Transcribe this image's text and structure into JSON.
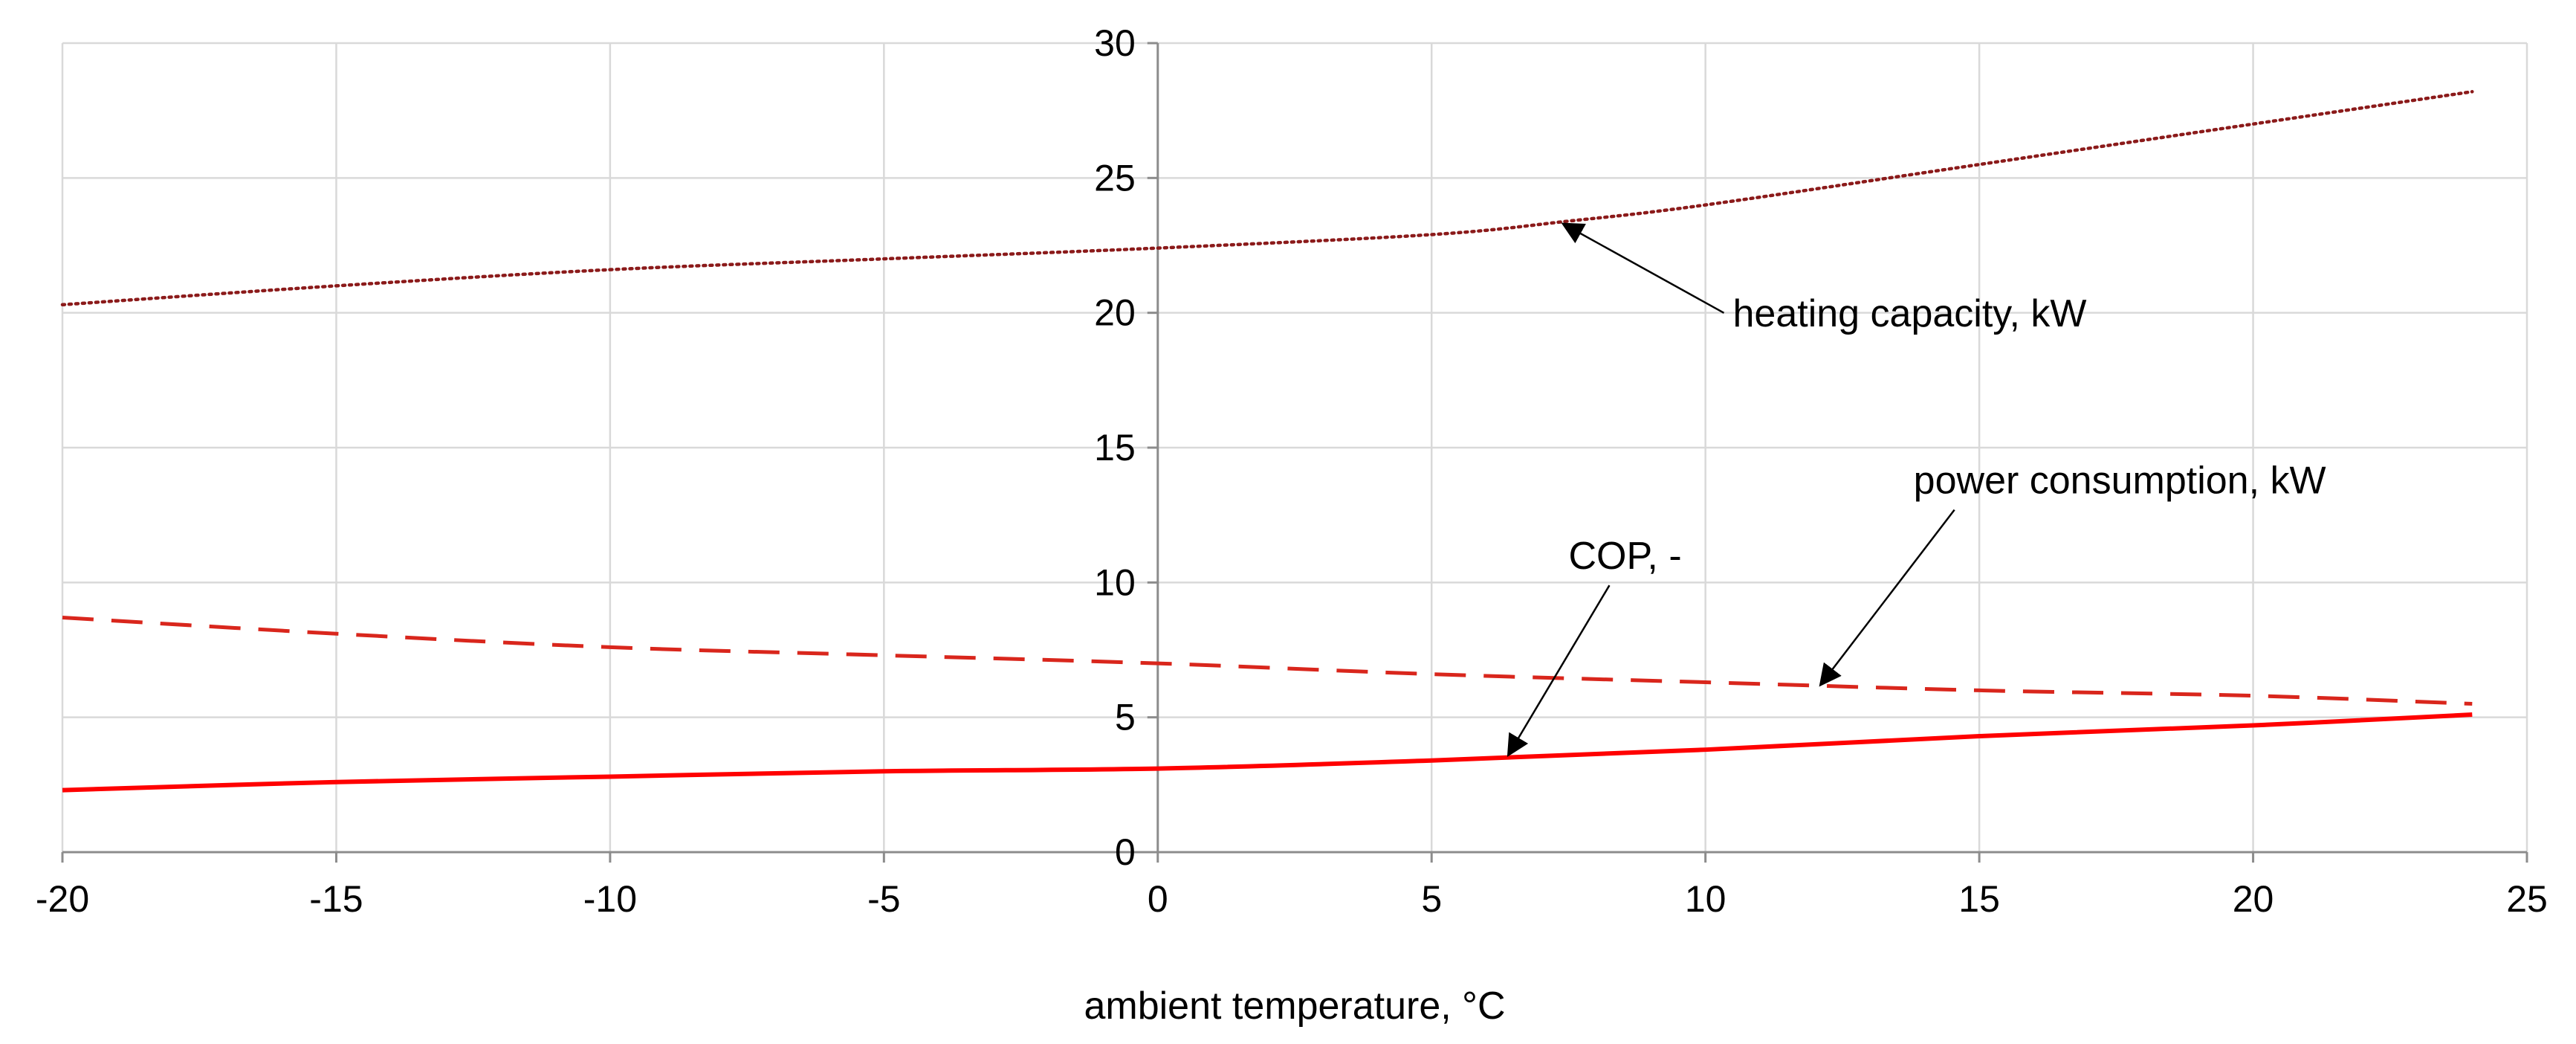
{
  "chart_data": {
    "type": "line",
    "title": "",
    "xlabel": "ambient temperature, °C",
    "ylabel": "",
    "xlim": [
      -20,
      25
    ],
    "ylim": [
      0,
      30
    ],
    "x_ticks": [
      -20,
      -15,
      -10,
      -5,
      0,
      5,
      10,
      15,
      20,
      25
    ],
    "y_ticks": [
      0,
      5,
      10,
      15,
      20,
      25,
      30
    ],
    "x_tick_labels": [
      "-20",
      "-15",
      "-10",
      "-5",
      "0",
      "5",
      "10",
      "15",
      "20",
      "25"
    ],
    "y_tick_labels": [
      "0",
      "5",
      "10",
      "15",
      "20",
      "25",
      "30"
    ],
    "grid": true,
    "y_axis_position_x": 0,
    "series": [
      {
        "name": "heating capacity, kW",
        "color": "#8b1a1a",
        "style": "dotted",
        "x": [
          -20,
          -15,
          -10,
          -5,
          0,
          5,
          7.5,
          10,
          15,
          20,
          24
        ],
        "y": [
          20.3,
          21.0,
          21.6,
          22.0,
          22.4,
          22.9,
          23.4,
          24.0,
          25.5,
          27.0,
          28.2
        ]
      },
      {
        "name": "power consumption, kW",
        "color": "#d9261c",
        "style": "dashed",
        "x": [
          -20,
          -15,
          -10,
          -5,
          0,
          5,
          10,
          15,
          20,
          24
        ],
        "y": [
          8.7,
          8.1,
          7.6,
          7.3,
          7.0,
          6.6,
          6.3,
          6.0,
          5.8,
          5.5
        ]
      },
      {
        "name": "COP, -",
        "color": "#ff0000",
        "style": "solid",
        "x": [
          -20,
          -15,
          -10,
          -5,
          0,
          5,
          10,
          15,
          20,
          24
        ],
        "y": [
          2.3,
          2.6,
          2.8,
          3.0,
          3.1,
          3.4,
          3.8,
          4.3,
          4.7,
          5.1
        ]
      }
    ],
    "annotations": [
      {
        "text": "heating capacity, kW",
        "series": "heating capacity, kW",
        "text_at": [
          10.5,
          19.5
        ],
        "arrow_to": [
          7.4,
          23.3
        ]
      },
      {
        "text": "power consumption, kW",
        "series": "power consumption, kW",
        "text_at": [
          13.8,
          13.3
        ],
        "arrow_to": [
          12.1,
          6.2
        ]
      },
      {
        "text": "COP, -",
        "series": "COP, -",
        "text_at": [
          7.5,
          10.5
        ],
        "arrow_to": [
          6.4,
          3.6
        ]
      }
    ]
  }
}
